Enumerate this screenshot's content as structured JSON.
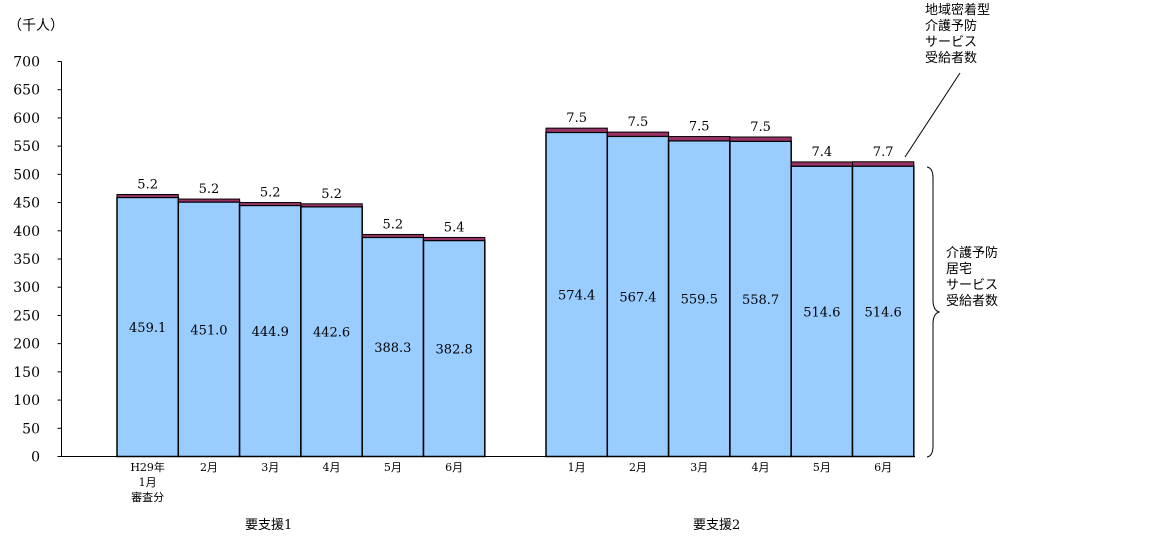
{
  "chart_data": {
    "type": "bar",
    "stacked": true,
    "y_unit_label": "（千人）",
    "ylim": [
      0,
      700
    ],
    "y_ticks": [
      0,
      50,
      100,
      150,
      200,
      250,
      300,
      350,
      400,
      450,
      500,
      550,
      600,
      650,
      700
    ],
    "grid": false,
    "groups": [
      {
        "label": "要支援1",
        "categories": [
          "H29年\n1月\n審査分",
          "2月",
          "3月",
          "4月",
          "5月",
          "6月"
        ],
        "series": [
          {
            "name": "介護予防\n居宅\nサービス\n受給者数",
            "values": [
              459.1,
              451.0,
              444.9,
              442.6,
              388.3,
              382.8
            ]
          },
          {
            "name": "地域密着型\n介護予防\nサービス\n受給者数",
            "values": [
              5.2,
              5.2,
              5.2,
              5.2,
              5.2,
              5.4
            ]
          }
        ]
      },
      {
        "label": "要支援2",
        "categories": [
          "1月",
          "2月",
          "3月",
          "4月",
          "5月",
          "6月"
        ],
        "series": [
          {
            "name": "介護予防\n居宅\nサービス\n受給者数",
            "values": [
              574.4,
              567.4,
              559.5,
              558.7,
              514.6,
              514.6
            ]
          },
          {
            "name": "地域密着型\n介護予防\nサービス\n受給者数",
            "values": [
              7.5,
              7.5,
              7.5,
              7.5,
              7.4,
              7.7
            ]
          }
        ]
      }
    ],
    "annotation_top": "地域密着型\n介護予防\nサービス\n受給者数",
    "annotation_side": "介護予防\n居宅\nサービス\n受給者数"
  },
  "colors": {
    "base": "#99CCFF",
    "top": "#993366",
    "stroke": "#000000"
  }
}
